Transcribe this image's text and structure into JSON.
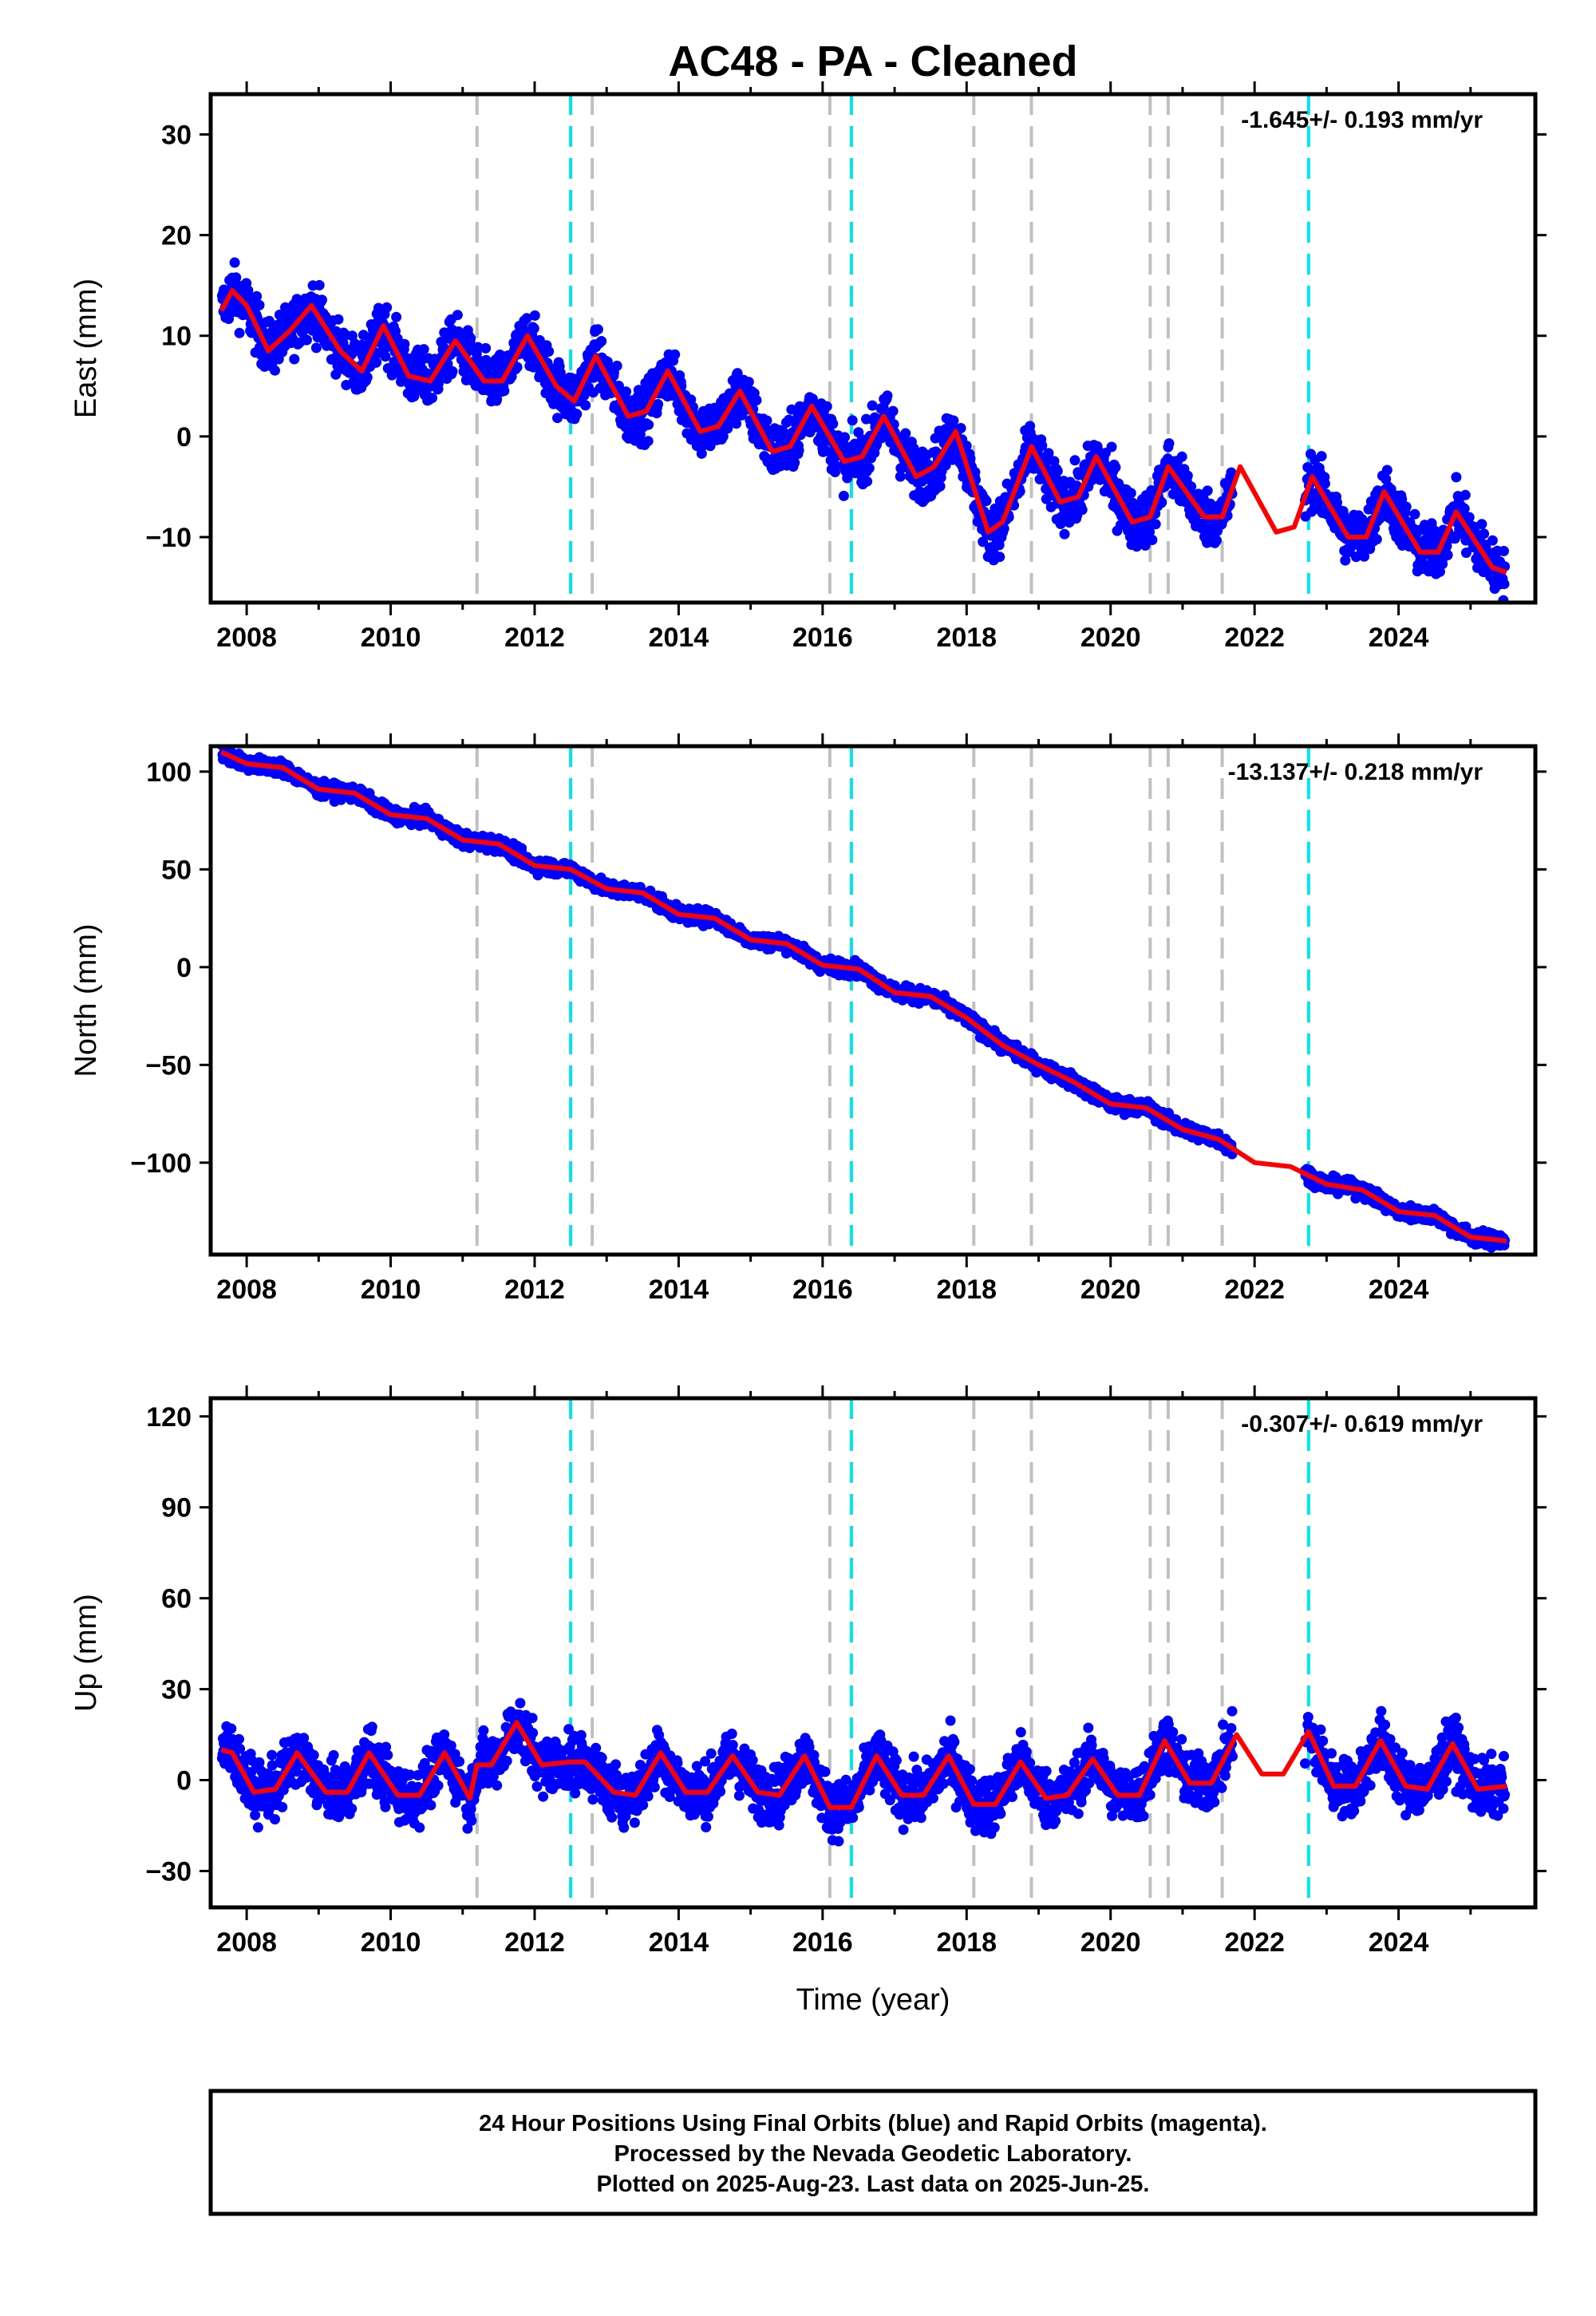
{
  "title": "AC48  - PA - Cleaned",
  "xlabel": "Time (year)",
  "footer": {
    "line1": "24 Hour Positions Using Final Orbits (blue) and Rapid Orbits (magenta).",
    "line2": "Processed by the Nevada Geodetic Laboratory.",
    "line3": "Plotted on 2025-Aug-23. Last data on 2025-Jun-25."
  },
  "colors": {
    "data": "#0000ff",
    "model": "#ff0000",
    "equipment_change": "#c0c0c0",
    "earthquake": "#00e5ee"
  },
  "chart_data": [
    {
      "type": "scatter",
      "ylabel": "East (mm)",
      "rate": "-1.645+/- 0.193 mm/yr",
      "xlim": [
        2007.5,
        2025.9
      ],
      "ylim": [
        -16.5,
        34
      ],
      "xticks": [
        2008,
        2010,
        2012,
        2014,
        2016,
        2018,
        2020,
        2022,
        2024
      ],
      "xtick_labels": [
        "2008",
        "2010",
        "2012",
        "2014",
        "2016",
        "2018",
        "2020",
        "2022",
        "2024"
      ],
      "yticks": [
        -10,
        0,
        10,
        20,
        30
      ],
      "ytick_labels": [
        "−10",
        "0",
        "10",
        "20",
        "30"
      ],
      "gray_lines": [
        2011.2,
        2012.8,
        2016.1,
        2018.1,
        2018.9,
        2020.55,
        2020.8,
        2021.55
      ],
      "cyan_lines": [
        2012.5,
        2016.4,
        2022.75
      ],
      "model": {
        "x": [
          2007.65,
          2007.8,
          2008.0,
          2008.3,
          2008.6,
          2008.9,
          2009.3,
          2009.6,
          2009.9,
          2010.25,
          2010.55,
          2010.9,
          2011.3,
          2011.55,
          2011.9,
          2012.3,
          2012.55,
          2012.85,
          2013.3,
          2013.55,
          2013.85,
          2014.3,
          2014.55,
          2014.85,
          2015.3,
          2015.55,
          2015.85,
          2016.3,
          2016.55,
          2016.85,
          2017.3,
          2017.55,
          2017.85,
          2018.3,
          2018.5,
          2018.85,
          2018.9,
          2019.3,
          2019.55,
          2019.8,
          2020.3,
          2020.55,
          2020.8,
          2021.3,
          2021.55,
          2021.8,
          2022.3,
          2022.55,
          2022.8,
          2023.3,
          2023.55,
          2023.8,
          2024.3,
          2024.55,
          2024.8,
          2025.3,
          2025.5
        ],
        "y": [
          12.5,
          14.5,
          13,
          8.5,
          10.5,
          13,
          8.5,
          6.5,
          11,
          6,
          5.5,
          9.5,
          5.5,
          5.5,
          10,
          5,
          3.5,
          8,
          2,
          2.5,
          6.5,
          0.5,
          1,
          4.5,
          -1.5,
          -1,
          3,
          -2.5,
          -2,
          2,
          -4,
          -3,
          0.5,
          -9.5,
          -8.5,
          -2,
          -1,
          -6.5,
          -6,
          -2,
          -8.5,
          -8,
          -3,
          -8,
          -8,
          -3,
          -9.5,
          -9,
          -4,
          -10,
          -10,
          -5.5,
          -11.5,
          -11.5,
          -7.5,
          -13,
          -13.5
        ]
      }
    },
    {
      "type": "scatter",
      "ylabel": "North (mm)",
      "rate": "-13.137+/- 0.218 mm/yr",
      "xlim": [
        2007.5,
        2025.9
      ],
      "ylim": [
        -147,
        113
      ],
      "xticks": [
        2008,
        2010,
        2012,
        2014,
        2016,
        2018,
        2020,
        2022,
        2024
      ],
      "xtick_labels": [
        "2008",
        "2010",
        "2012",
        "2014",
        "2016",
        "2018",
        "2020",
        "2022",
        "2024"
      ],
      "yticks": [
        -100,
        -50,
        0,
        50,
        100
      ],
      "ytick_labels": [
        "−100",
        "−50",
        "0",
        "50",
        "100"
      ],
      "gray_lines": [
        2011.2,
        2012.8,
        2016.1,
        2018.1,
        2018.9,
        2020.55,
        2020.8,
        2021.55
      ],
      "cyan_lines": [
        2012.5,
        2016.4,
        2022.75
      ],
      "model": {
        "x": [
          2007.65,
          2008.0,
          2008.5,
          2009.0,
          2009.5,
          2010.0,
          2010.5,
          2011.0,
          2011.5,
          2012.0,
          2012.5,
          2013.0,
          2013.5,
          2014.0,
          2014.5,
          2015.0,
          2015.5,
          2016.0,
          2016.5,
          2017.0,
          2017.5,
          2018.0,
          2018.5,
          2019.0,
          2019.5,
          2020.0,
          2020.5,
          2021.0,
          2021.5,
          2022.0,
          2022.5,
          2023.0,
          2023.5,
          2024.0,
          2024.5,
          2025.0,
          2025.5
        ],
        "y": [
          110,
          104,
          102,
          91,
          89,
          78,
          76,
          65,
          63,
          52,
          50,
          40,
          38,
          27,
          25,
          14,
          12,
          1,
          -1,
          -13,
          -15,
          -26,
          -40,
          -50,
          -59,
          -70,
          -72,
          -83,
          -88,
          -100,
          -102,
          -111,
          -114,
          -125,
          -127,
          -138,
          -140
        ]
      }
    },
    {
      "type": "scatter",
      "ylabel": "Up (mm)",
      "rate": "-0.307+/- 0.619 mm/yr",
      "xlim": [
        2007.5,
        2025.9
      ],
      "ylim": [
        -42,
        126
      ],
      "xticks": [
        2008,
        2010,
        2012,
        2014,
        2016,
        2018,
        2020,
        2022,
        2024
      ],
      "xtick_labels": [
        "2008",
        "2010",
        "2012",
        "2014",
        "2016",
        "2018",
        "2020",
        "2022",
        "2024"
      ],
      "yticks": [
        -30,
        0,
        30,
        60,
        90,
        120
      ],
      "ytick_labels": [
        "−30",
        "0",
        "30",
        "60",
        "90",
        "120"
      ],
      "gray_lines": [
        2011.2,
        2012.8,
        2016.1,
        2018.1,
        2018.9,
        2020.55,
        2020.8,
        2021.55
      ],
      "cyan_lines": [
        2012.5,
        2016.4,
        2022.75
      ],
      "model": {
        "x": [
          2007.65,
          2007.8,
          2008.1,
          2008.4,
          2008.7,
          2009.1,
          2009.4,
          2009.7,
          2010.1,
          2010.4,
          2010.75,
          2011.1,
          2011.2,
          2011.4,
          2011.75,
          2012.1,
          2012.5,
          2012.7,
          2013.1,
          2013.4,
          2013.75,
          2014.1,
          2014.4,
          2014.75,
          2015.1,
          2015.4,
          2015.75,
          2016.1,
          2016.4,
          2016.75,
          2017.1,
          2017.4,
          2017.75,
          2018.1,
          2018.4,
          2018.75,
          2019.1,
          2019.4,
          2019.75,
          2020.1,
          2020.4,
          2020.75,
          2021.1,
          2021.4,
          2021.75,
          2022.1,
          2022.4,
          2022.75,
          2023.1,
          2023.4,
          2023.75,
          2024.1,
          2024.4,
          2024.75,
          2025.1,
          2025.5
        ],
        "y": [
          10,
          9,
          -4,
          -3,
          9,
          -4,
          -4,
          9,
          -5,
          -5,
          9,
          -6,
          5,
          5,
          19,
          5,
          6,
          6,
          -4,
          -5,
          9,
          -4,
          -4,
          8,
          -4,
          -5,
          8,
          -9,
          -9,
          8,
          -5,
          -5,
          8,
          -8,
          -8,
          6,
          -6,
          -5,
          7,
          -5,
          -5,
          13,
          -1,
          -1,
          15,
          2,
          2,
          16,
          -2,
          -2,
          13,
          -2,
          -3,
          12,
          -3,
          -2
        ]
      }
    }
  ]
}
